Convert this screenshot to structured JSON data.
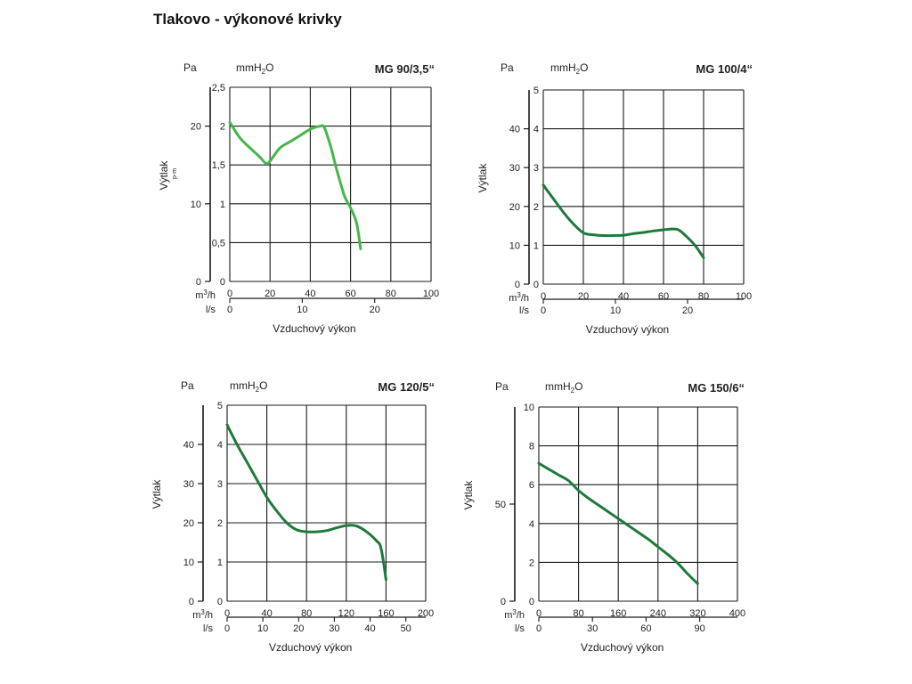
{
  "page_title": "Tlakovo - výkonové krivky",
  "chart_data": [
    {
      "type": "line",
      "title": "MG 90/3,5“",
      "pressure_unit": "Pa",
      "height_unit": "mmH2O",
      "ylabel": "Výtlak",
      "ylabel_extra": "p-m",
      "xlabel": "Vzduchový výkon",
      "x_unit": "m3/h",
      "x2_unit": "l/s",
      "xlim": [
        0,
        100
      ],
      "xticks": [
        "0",
        "20",
        "40",
        "60",
        "80",
        "100"
      ],
      "ylim": [
        0,
        2.5
      ],
      "yticks": [
        "0",
        "0,5",
        "1",
        "1,5",
        "2",
        "2,5"
      ],
      "pa_ticks": [
        {
          "value": 0,
          "label": "0"
        },
        {
          "value": 10,
          "label": "10"
        },
        {
          "value": 20,
          "label": "20"
        }
      ],
      "ls_ticks": [
        {
          "value": 0,
          "label": "0"
        },
        {
          "value": 10,
          "label": "10"
        },
        {
          "value": 20,
          "label": "20"
        }
      ],
      "color": "#45b649",
      "series": [
        {
          "name": "MG 90/3,5“",
          "x": [
            0,
            5,
            10,
            15,
            18,
            20,
            25,
            30,
            35,
            40,
            45,
            47,
            50,
            53,
            57,
            60,
            63,
            65
          ],
          "y": [
            2.05,
            1.85,
            1.72,
            1.6,
            1.52,
            1.55,
            1.72,
            1.8,
            1.88,
            1.96,
            2.0,
            1.98,
            1.75,
            1.45,
            1.1,
            0.95,
            0.75,
            0.42
          ]
        }
      ]
    },
    {
      "type": "line",
      "title": "MG 100/4“",
      "pressure_unit": "Pa",
      "height_unit": "mmH2O",
      "ylabel": "Výtlak",
      "ylabel_extra": "",
      "xlabel": "Vzduchový výkon",
      "x_unit": "m3/h",
      "x2_unit": "l/s",
      "xlim": [
        0,
        100
      ],
      "xticks": [
        "0",
        "20",
        "40",
        "60",
        "80",
        "100"
      ],
      "ylim": [
        0,
        5
      ],
      "yticks": [
        "0",
        "1",
        "2",
        "3",
        "4",
        "5"
      ],
      "pa_ticks": [
        {
          "value": 0,
          "label": "0"
        },
        {
          "value": 10,
          "label": "10"
        },
        {
          "value": 20,
          "label": "20"
        },
        {
          "value": 30,
          "label": "30"
        },
        {
          "value": 40,
          "label": "40"
        }
      ],
      "ls_ticks": [
        {
          "value": 0,
          "label": "0"
        },
        {
          "value": 10,
          "label": "10"
        },
        {
          "value": 20,
          "label": "20"
        }
      ],
      "color": "#1e7a3a",
      "series": [
        {
          "name": "MG 100/4“",
          "x": [
            0,
            5,
            10,
            15,
            20,
            25,
            30,
            35,
            40,
            45,
            50,
            55,
            60,
            65,
            68,
            72,
            76,
            80
          ],
          "y": [
            2.55,
            2.2,
            1.85,
            1.55,
            1.32,
            1.27,
            1.25,
            1.25,
            1.26,
            1.3,
            1.33,
            1.37,
            1.4,
            1.42,
            1.38,
            1.2,
            0.98,
            0.68
          ]
        }
      ]
    },
    {
      "type": "line",
      "title": "MG 120/5“",
      "pressure_unit": "Pa",
      "height_unit": "mmH2O",
      "ylabel": "Výtlak",
      "ylabel_extra": "",
      "xlabel": "Vzduchový výkon",
      "x_unit": "m3/h",
      "x2_unit": "l/s",
      "xlim": [
        0,
        200
      ],
      "xticks": [
        "0",
        "40",
        "80",
        "120",
        "160",
        "200"
      ],
      "ylim": [
        0,
        5
      ],
      "yticks": [
        "0",
        "1",
        "2",
        "3",
        "4",
        "5"
      ],
      "pa_ticks": [
        {
          "value": 0,
          "label": "0"
        },
        {
          "value": 10,
          "label": "10"
        },
        {
          "value": 20,
          "label": "20"
        },
        {
          "value": 30,
          "label": "30"
        },
        {
          "value": 40,
          "label": "40"
        }
      ],
      "ls_ticks": [
        {
          "value": 0,
          "label": "0"
        },
        {
          "value": 10,
          "label": "10"
        },
        {
          "value": 20,
          "label": "20"
        },
        {
          "value": 30,
          "label": "30"
        },
        {
          "value": 40,
          "label": "40"
        },
        {
          "value": 50,
          "label": "50"
        }
      ],
      "color": "#1e7a3a",
      "series": [
        {
          "name": "MG 120/5“",
          "x": [
            0,
            10,
            20,
            30,
            40,
            50,
            60,
            70,
            80,
            90,
            100,
            110,
            120,
            130,
            140,
            150,
            155,
            160
          ],
          "y": [
            4.5,
            4.0,
            3.55,
            3.1,
            2.65,
            2.3,
            2.0,
            1.82,
            1.77,
            1.77,
            1.8,
            1.87,
            1.93,
            1.92,
            1.78,
            1.55,
            1.35,
            0.55
          ]
        }
      ]
    },
    {
      "type": "line",
      "title": "MG 150/6“",
      "pressure_unit": "Pa",
      "height_unit": "mmH2O",
      "ylabel": "Výtlak",
      "ylabel_extra": "",
      "xlabel": "Vzduchový výkon",
      "x_unit": "m3/h",
      "x2_unit": "l/s",
      "xlim": [
        0,
        400
      ],
      "xticks": [
        "0",
        "80",
        "160",
        "240",
        "320",
        "400"
      ],
      "ylim": [
        0,
        10
      ],
      "yticks": [
        "0",
        "2",
        "4",
        "6",
        "8",
        "10"
      ],
      "pa_ticks": [
        {
          "value": 0,
          "label": "0"
        },
        {
          "value": 50,
          "label": "50"
        }
      ],
      "ls_ticks": [
        {
          "value": 0,
          "label": "0"
        },
        {
          "value": 30,
          "label": "30"
        },
        {
          "value": 60,
          "label": "60"
        },
        {
          "value": 90,
          "label": "90"
        }
      ],
      "color": "#1e7a3a",
      "series": [
        {
          "name": "MG 150/6“",
          "x": [
            0,
            20,
            40,
            60,
            80,
            100,
            120,
            140,
            160,
            180,
            200,
            220,
            240,
            260,
            280,
            300,
            320
          ],
          "y": [
            7.1,
            6.8,
            6.5,
            6.2,
            5.7,
            5.3,
            4.95,
            4.6,
            4.25,
            3.9,
            3.55,
            3.2,
            2.8,
            2.4,
            1.95,
            1.4,
            0.9
          ]
        }
      ]
    }
  ]
}
